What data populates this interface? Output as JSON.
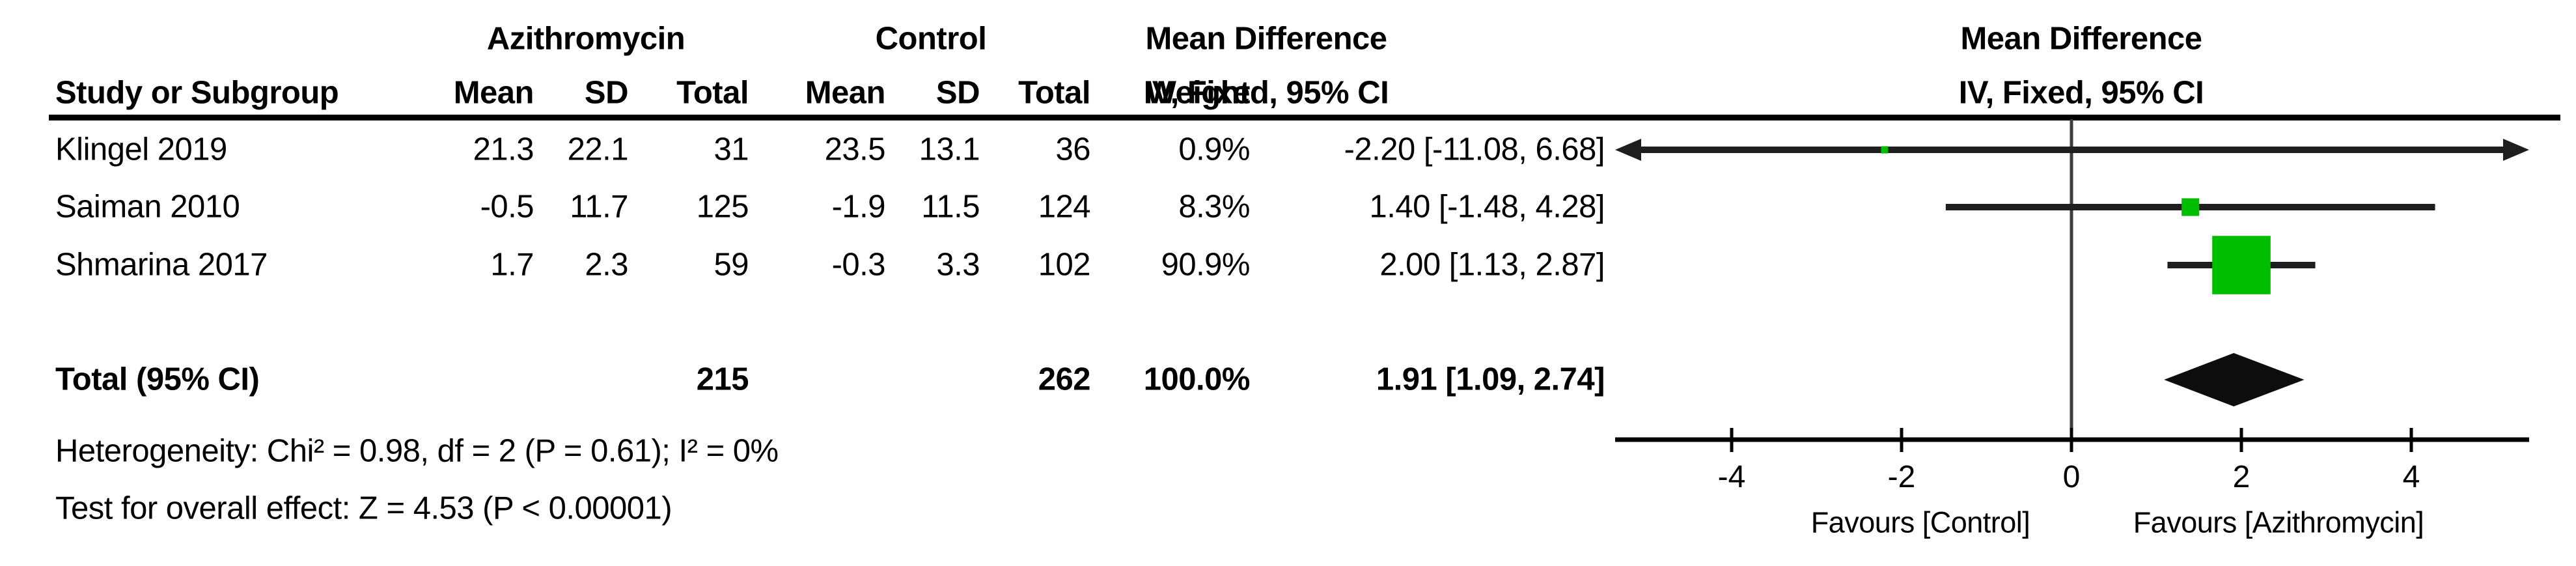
{
  "table": {
    "header_groups": {
      "experimental": "Azithromycin",
      "control": "Control",
      "effect": "Mean Difference",
      "plot_effect": "Mean Difference"
    },
    "header_cols": {
      "study": "Study or Subgroup",
      "mean1": "Mean",
      "sd1": "SD",
      "total1": "Total",
      "mean2": "Mean",
      "sd2": "SD",
      "total2": "Total",
      "weight": "Weight",
      "ci": "IV, Fixed, 95% CI",
      "plot_ci": "IV, Fixed, 95% CI"
    },
    "studies": [
      {
        "name": "Klingel 2019",
        "mean1": "21.3",
        "sd1": "22.1",
        "total1": "31",
        "mean2": "23.5",
        "sd2": "13.1",
        "total2": "36",
        "weight": "0.9%",
        "ci": "-2.20 [-11.08, 6.68]"
      },
      {
        "name": "Saiman 2010",
        "mean1": "-0.5",
        "sd1": "11.7",
        "total1": "125",
        "mean2": "-1.9",
        "sd2": "11.5",
        "total2": "124",
        "weight": "8.3%",
        "ci": "1.40 [-1.48, 4.28]"
      },
      {
        "name": "Shmarina 2017",
        "mean1": "1.7",
        "sd1": "2.3",
        "total1": "59",
        "mean2": "-0.3",
        "sd2": "3.3",
        "total2": "102",
        "weight": "90.9%",
        "ci": "2.00 [1.13, 2.87]"
      }
    ],
    "total_row": {
      "label": "Total (95% CI)",
      "total1": "215",
      "total2": "262",
      "weight": "100.0%",
      "ci": "1.91 [1.09, 2.74]"
    },
    "heterogeneity": "Heterogeneity: Chi² = 0.98, df = 2 (P = 0.61); I² = 0%",
    "overall_effect": "Test for overall effect: Z = 4.53 (P < 0.00001)"
  },
  "chart_data": {
    "type": "forest",
    "effect_measure": "Mean Difference, IV, Fixed, 95% CI",
    "x_ticks": [
      -4,
      -2,
      0,
      2,
      4
    ],
    "xlim": [
      -5.4,
      5.4
    ],
    "favours_left": "Favours [Control]",
    "favours_right": "Favours [Azithromycin]",
    "marker_color": "#00BD00",
    "line_color": "#1e1e1e",
    "diamond_color": "#0d0d0d",
    "axis_color": "#000000",
    "studies": [
      {
        "name": "Klingel 2019",
        "md": -2.2,
        "ci_low": -11.08,
        "ci_high": 6.68,
        "weight": 0.9
      },
      {
        "name": "Saiman 2010",
        "md": 1.4,
        "ci_low": -1.48,
        "ci_high": 4.28,
        "weight": 8.3
      },
      {
        "name": "Shmarina 2017",
        "md": 2.0,
        "ci_low": 1.13,
        "ci_high": 2.87,
        "weight": 90.9
      }
    ],
    "total": {
      "md": 1.91,
      "ci_low": 1.09,
      "ci_high": 2.74
    }
  }
}
